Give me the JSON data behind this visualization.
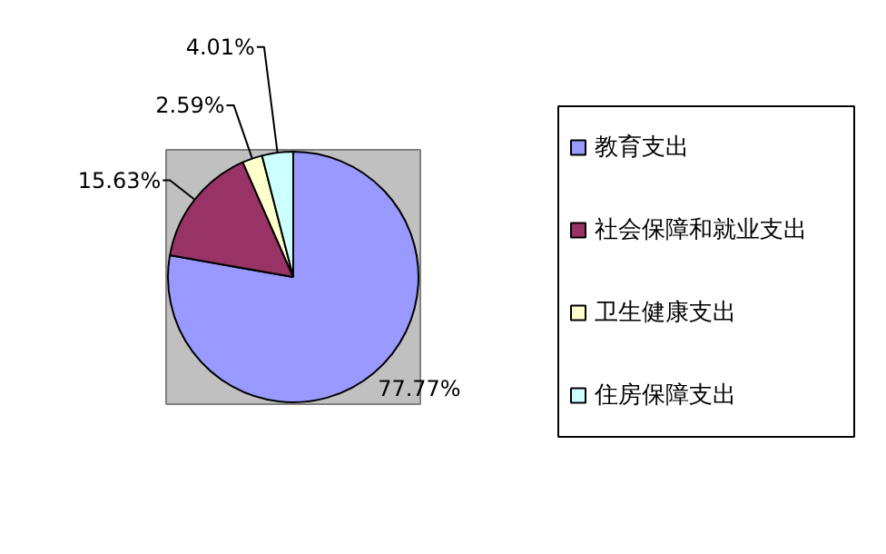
{
  "chart_data": {
    "type": "pie",
    "categories": [
      "教育支出",
      "社会保障和就业支出",
      "卫生健康支出",
      "住房保障支出"
    ],
    "values": [
      77.77,
      15.63,
      2.59,
      4.01
    ],
    "colors": [
      "#9999ff",
      "#993366",
      "#ffffcc",
      "#ccffff"
    ],
    "value_labels": [
      "77.77%",
      "15.63%",
      "2.59%",
      "4.01%"
    ],
    "legend": "right"
  }
}
